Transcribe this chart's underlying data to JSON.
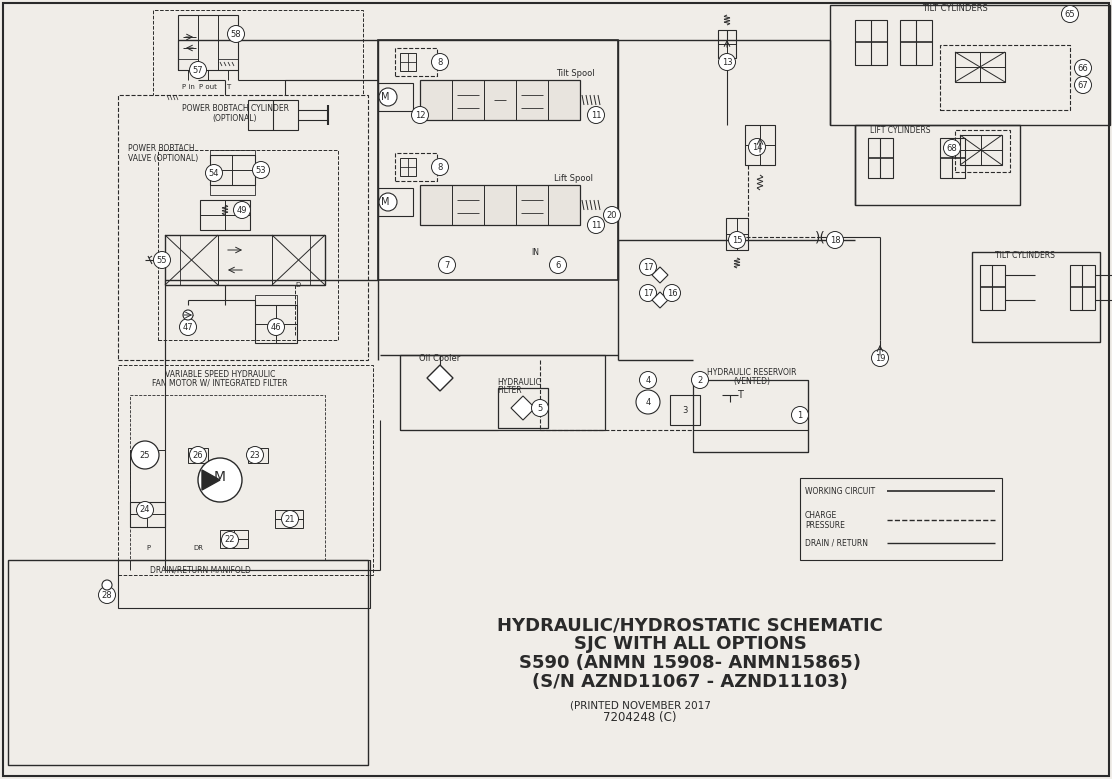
{
  "bg": "#f0ede8",
  "lc": "#2a2a2a",
  "title_lines": [
    "HYDRAULIC/HYDROSTATIC SCHEMATIC",
    "SJC WITH ALL OPTIONS",
    "S590 (ANMN 15908- ANMN15865)",
    "(S/N AZND11067 - AZND11103)"
  ],
  "subtitle": "(PRINTED NOVEMBER 2017",
  "part_number": "7204248 (C)"
}
